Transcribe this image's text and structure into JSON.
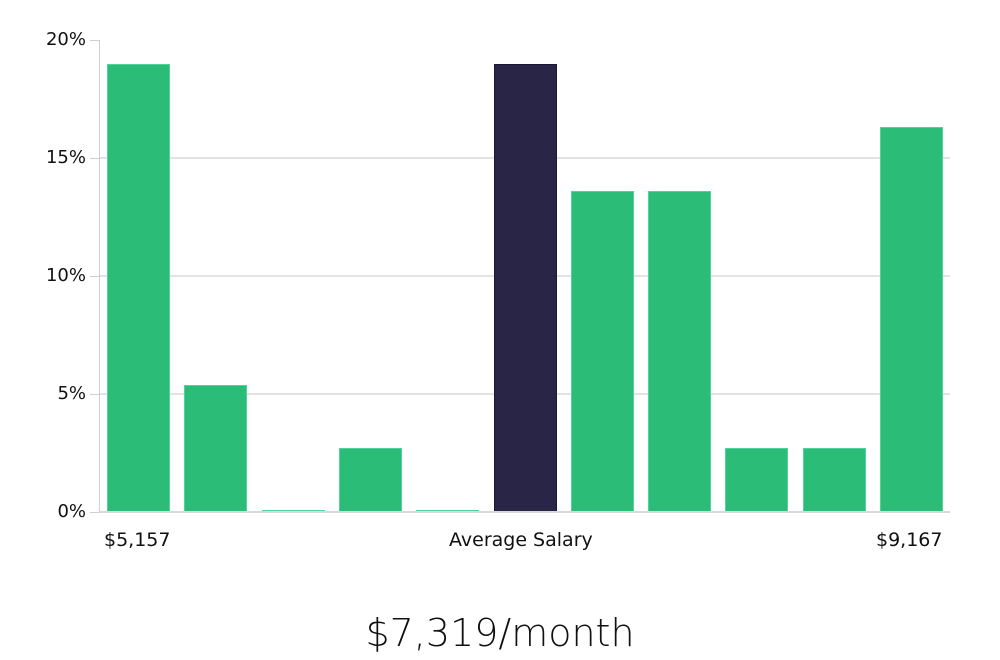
{
  "chart_data": {
    "type": "bar",
    "title": "",
    "xlabel": "Average Salary",
    "ylabel": "",
    "ylim": [
      0,
      20
    ],
    "y_ticks": [
      "0%",
      "5%",
      "10%",
      "15%",
      "20%"
    ],
    "grid": true,
    "x_range_labels": {
      "min": "$5,157",
      "center": "Average Salary",
      "max": "$9,167"
    },
    "categories": [
      "bin1",
      "bin2",
      "bin3",
      "bin4",
      "bin5",
      "bin6",
      "bin7",
      "bin8",
      "bin9",
      "bin10",
      "bin11"
    ],
    "values": [
      19.0,
      5.4,
      0.0,
      2.7,
      0.0,
      19.0,
      13.6,
      13.6,
      2.7,
      2.7,
      16.3
    ],
    "highlight_index": 5,
    "colors": {
      "bar": "#2bbd77",
      "highlight": "#282546",
      "grid": "#e3e3e3"
    },
    "summary": "$7,319/month"
  },
  "axis": {
    "y_labels": [
      "20%",
      "15%",
      "10%",
      "5%",
      "0%"
    ],
    "x_min_label": "$5,157",
    "x_center_label": "Average Salary",
    "x_max_label": "$9,167"
  },
  "summary": {
    "average_salary": "$7,319/month"
  }
}
